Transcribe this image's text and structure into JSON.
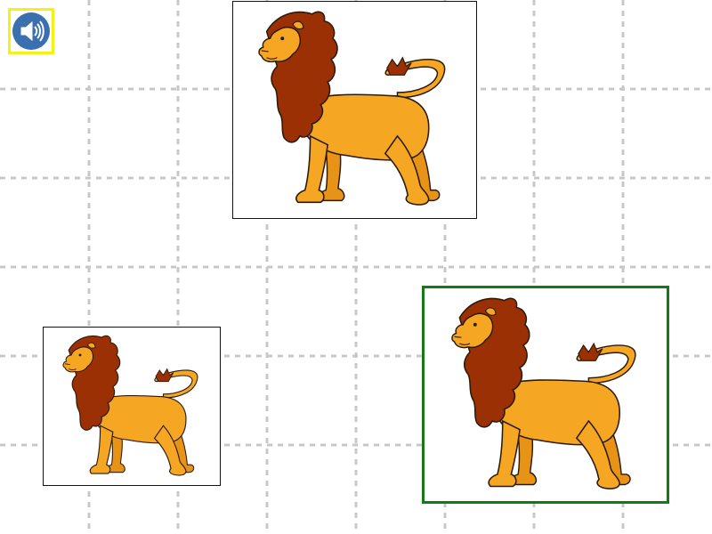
{
  "activity": {
    "sound_button": {
      "icon": "speaker-icon",
      "highlight_color": "#f5f116",
      "button_color": "#3a70ad"
    },
    "cards": [
      {
        "role": "target",
        "image": "lion-illustration",
        "selected": false
      },
      {
        "role": "choice",
        "image": "lion-illustration",
        "selected": false
      },
      {
        "role": "choice",
        "image": "lion-illustration",
        "selected": true
      }
    ],
    "colors": {
      "grid_line": "#c8c8c8",
      "selected_border": "#147a14",
      "card_border": "#111111",
      "lion_body": "#f5a623",
      "lion_mane": "#9b3004",
      "lion_outline": "#2b1a0a"
    }
  }
}
